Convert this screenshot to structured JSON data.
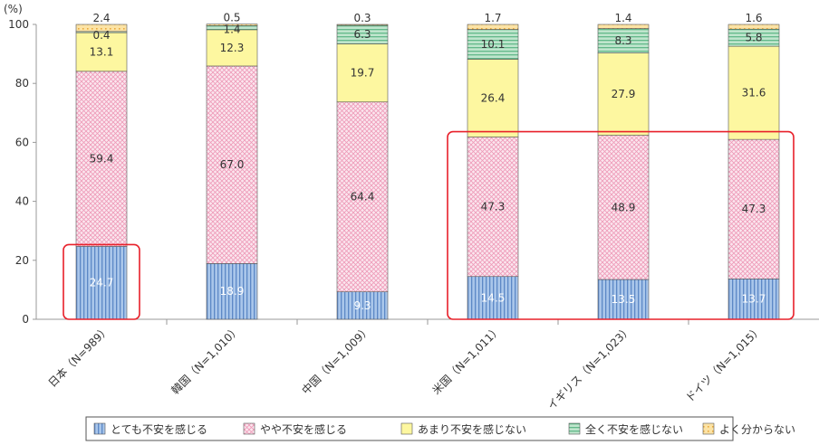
{
  "chart_data": {
    "type": "bar",
    "stacked": true,
    "unit_label": "(%)",
    "categories": [
      "日本（N=989）",
      "韓国（N=1,010）",
      "中国（N=1,009）",
      "米国（N=1,011）",
      "イギリス（N=1,023）",
      "ドイツ（N=1,015）"
    ],
    "series": [
      {
        "name": "とても不安を感じる",
        "values": [
          24.7,
          18.9,
          9.3,
          14.5,
          13.5,
          13.7
        ],
        "color": "#8fb6e3"
      },
      {
        "name": "やや不安を感じる",
        "values": [
          59.4,
          67.0,
          64.4,
          47.3,
          48.9,
          47.3
        ],
        "color": "#f9d3e0"
      },
      {
        "name": "あまり不安を感じない",
        "values": [
          13.1,
          12.3,
          19.7,
          26.4,
          27.9,
          31.6
        ],
        "color": "#fdf7a0"
      },
      {
        "name": "全く不安を感じない",
        "values": [
          0.4,
          1.4,
          6.3,
          10.1,
          8.3,
          5.8
        ],
        "color": "#9fd8b7"
      },
      {
        "name": "よく分からない",
        "values": [
          2.4,
          0.5,
          0.3,
          1.7,
          1.4,
          1.6
        ],
        "color": "#f7d27d"
      }
    ],
    "value_labels": [
      [
        "24.7",
        "18.9",
        "9.3",
        "14.5",
        "13.5",
        "13.7"
      ],
      [
        "59.4",
        "67.0",
        "64.4",
        "47.3",
        "48.9",
        "47.3"
      ],
      [
        "13.1",
        "12.3",
        "19.7",
        "26.4",
        "27.9",
        "31.6"
      ],
      [
        "0.4",
        "1.4",
        "6.3",
        "10.1",
        "8.3",
        "5.8"
      ],
      [
        "2.4",
        "0.5",
        "0.3",
        "1.7",
        "1.4",
        "1.6"
      ]
    ],
    "ylim": [
      0,
      100
    ],
    "yticks": [
      0,
      20,
      40,
      60,
      80,
      100
    ],
    "yticks_labels": [
      "0",
      "20",
      "40",
      "60",
      "80",
      "100"
    ],
    "legend_position": "bottom",
    "highlight_color": "#e8202a",
    "grid": false
  }
}
